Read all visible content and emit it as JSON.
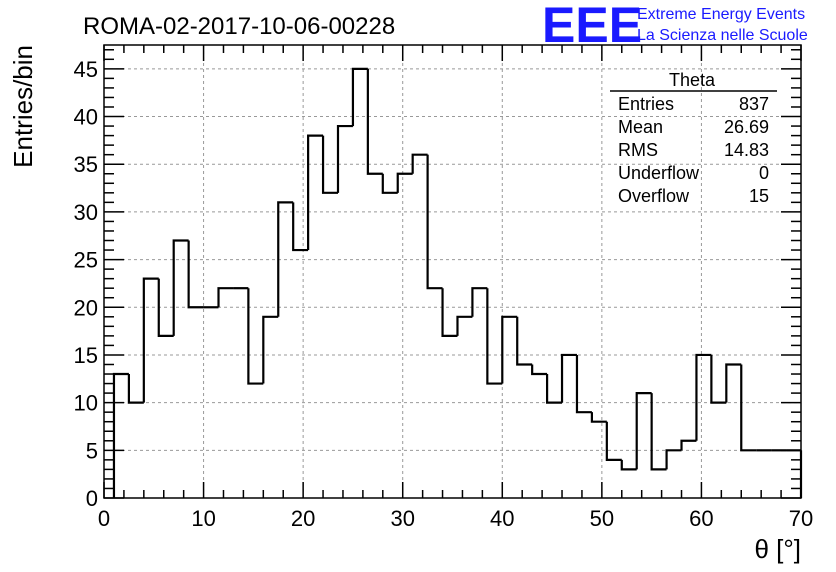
{
  "logo": {
    "mark": "EEE",
    "line1": "Extreme Energy Events",
    "line2": "La Scienza nelle Scuole",
    "color": "#1a1aff"
  },
  "stats_box": {
    "title": "Theta",
    "rows": [
      {
        "label": "Entries",
        "value": "837"
      },
      {
        "label": "Mean",
        "value": "26.69"
      },
      {
        "label": "RMS",
        "value": "14.83"
      },
      {
        "label": "Underflow",
        "value": "0"
      },
      {
        "label": "Overflow",
        "value": "15"
      }
    ]
  },
  "chart_data": {
    "type": "bar",
    "title": "ROMA-02-2017-10-06-00228",
    "xlabel": "θ [°]",
    "ylabel": "Entries/bin",
    "xlim": [
      0,
      70
    ],
    "ylim": [
      0,
      47.5
    ],
    "xticks": [
      0,
      10,
      20,
      30,
      40,
      50,
      60,
      70
    ],
    "yticks": [
      0,
      5,
      10,
      15,
      20,
      25,
      30,
      35,
      40,
      45
    ],
    "grid": true,
    "bin_width": 1.5,
    "bin_start": 1.0,
    "values": [
      13,
      10,
      23,
      17,
      27,
      20,
      20,
      22,
      22,
      12,
      19,
      31,
      26,
      38,
      32,
      39,
      45,
      34,
      32,
      34,
      36,
      22,
      17,
      19,
      22,
      12,
      19,
      14,
      13,
      10,
      15,
      9,
      8,
      4,
      3,
      11,
      3,
      5,
      6,
      15,
      10,
      14,
      5,
      5,
      5,
      5
    ],
    "line_color": "#000000"
  }
}
